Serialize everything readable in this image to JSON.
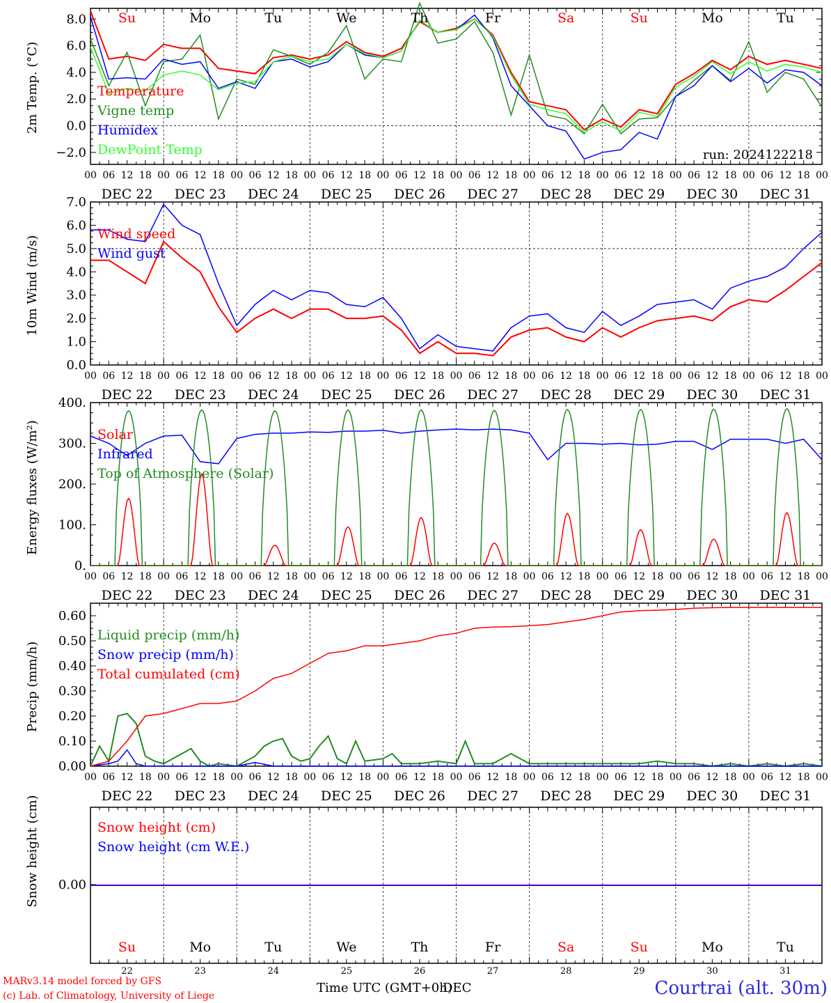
{
  "colors": {
    "red": "#ff0000",
    "green": "#228b22",
    "blue": "#0000ff",
    "lightgreen": "#33ff33",
    "black": "#000000",
    "title_blue": "#2b2be0"
  },
  "days": {
    "names": [
      "Su",
      "Mo",
      "Tu",
      "We",
      "Th",
      "Fr",
      "Sa",
      "Su",
      "Mo",
      "Tu"
    ],
    "colors": [
      "red",
      "black",
      "black",
      "black",
      "black",
      "black",
      "red",
      "red",
      "black",
      "black"
    ],
    "dates": [
      "DEC 22",
      "DEC 23",
      "DEC 24",
      "DEC 25",
      "DEC 26",
      "DEC 27",
      "DEC 28",
      "DEC 29",
      "DEC 30",
      "DEC 31"
    ],
    "numbers": [
      "22",
      "23",
      "24",
      "25",
      "26",
      "27",
      "28",
      "29",
      "30",
      "31"
    ],
    "hour_labels": [
      "00",
      "06",
      "12",
      "18"
    ],
    "final_hour": "00"
  },
  "footer": {
    "credit1": "MARv3.14 model forced by GFS",
    "credit2": "(c) Lab. of Climatology, University of Liege",
    "time_label": "Time UTC (GMT+0h)",
    "time_label_overlap": "DEC",
    "location": "Courtrai (alt. 30m)"
  },
  "chart_data": [
    {
      "type": "line",
      "ylabel": "2m Temp. (°C)",
      "ylim": [
        -2.9,
        8.8
      ],
      "ytick_values": [
        -2,
        0,
        2,
        4,
        6,
        8
      ],
      "ytick_labels": [
        "−2.0",
        "0.0",
        "2.0",
        "4.0",
        "6.0",
        "8.0"
      ],
      "reference_line": 0,
      "annotation": "run: 2024122218",
      "x_hours": [
        0,
        6,
        12,
        18,
        24,
        30,
        36,
        42,
        48,
        54,
        60,
        66,
        72,
        78,
        84,
        90,
        96,
        102,
        108,
        114,
        120,
        126,
        132,
        138,
        144,
        150,
        156,
        162,
        168,
        174,
        180,
        186,
        192,
        198,
        204,
        210,
        216,
        222,
        228,
        234,
        240
      ],
      "series": [
        {
          "name": "Temperature",
          "color": "red",
          "values": [
            8.6,
            5.0,
            5.2,
            4.9,
            6.1,
            5.8,
            5.8,
            4.3,
            4.1,
            3.9,
            5.1,
            5.3,
            5.0,
            5.3,
            6.3,
            5.5,
            5.2,
            5.8,
            7.8,
            7.0,
            7.3,
            8.0,
            6.8,
            4.0,
            1.8,
            1.5,
            1.2,
            -0.3,
            0.5,
            -0.1,
            1.2,
            0.9,
            3.1,
            3.9,
            4.9,
            4.2,
            5.2,
            4.6,
            4.9,
            4.6,
            4.3
          ]
        },
        {
          "name": "Vigne temp",
          "color": "green",
          "values": [
            6.5,
            3.0,
            5.5,
            1.5,
            4.8,
            5.0,
            6.8,
            0.5,
            3.5,
            3.1,
            5.7,
            5.2,
            4.6,
            5.5,
            7.5,
            3.5,
            5.0,
            4.8,
            9.2,
            6.2,
            6.5,
            7.8,
            5.5,
            0.8,
            5.3,
            0.8,
            0.5,
            -0.6,
            1.6,
            -0.6,
            0.5,
            0.6,
            2.2,
            3.4,
            4.5,
            3.4,
            6.3,
            2.5,
            4.0,
            3.5,
            1.4
          ]
        },
        {
          "name": "Humidex",
          "color": "blue",
          "values": [
            8.2,
            3.5,
            3.6,
            3.5,
            5.0,
            4.6,
            4.8,
            2.8,
            3.3,
            2.8,
            4.8,
            5.0,
            4.4,
            4.8,
            6.1,
            5.3,
            5.1,
            5.6,
            7.9,
            7.0,
            7.2,
            8.3,
            6.6,
            3.0,
            1.5,
            0.0,
            -0.4,
            -2.5,
            -2.0,
            -1.8,
            -0.5,
            -1.0,
            2.2,
            3.0,
            4.5,
            3.3,
            4.3,
            3.2,
            4.2,
            4.0,
            3.0
          ]
        },
        {
          "name": "DewPoint Temp",
          "color": "lightgreen",
          "values": [
            5.9,
            2.4,
            2.8,
            2.6,
            3.8,
            4.1,
            3.8,
            2.7,
            3.2,
            3.3,
            4.8,
            5.2,
            4.8,
            5.0,
            6.1,
            5.4,
            5.1,
            5.6,
            7.9,
            7.0,
            7.2,
            8.0,
            6.7,
            3.8,
            1.6,
            1.2,
            0.9,
            -0.5,
            0.3,
            -0.4,
            1.0,
            0.7,
            2.9,
            3.7,
            4.8,
            3.9,
            4.8,
            4.1,
            4.6,
            4.4,
            4.0
          ]
        }
      ]
    },
    {
      "type": "line",
      "ylabel": "10m Wind (m/s)",
      "ylim": [
        0,
        7
      ],
      "ytick_values": [
        0,
        1,
        2,
        3,
        4,
        5,
        6,
        7
      ],
      "ytick_labels": [
        "0.0",
        "1.0",
        "2.0",
        "3.0",
        "4.0",
        "5.0",
        "6.0",
        "7.0"
      ],
      "reference_line": 5,
      "x_hours": [
        0,
        6,
        12,
        18,
        24,
        30,
        36,
        42,
        48,
        54,
        60,
        66,
        72,
        78,
        84,
        90,
        96,
        102,
        108,
        114,
        120,
        126,
        132,
        138,
        144,
        150,
        156,
        162,
        168,
        174,
        180,
        186,
        192,
        198,
        204,
        210,
        216,
        222,
        228,
        234,
        240
      ],
      "series": [
        {
          "name": "Wind speed",
          "color": "red",
          "values": [
            4.5,
            4.5,
            4.0,
            3.5,
            5.3,
            4.6,
            4.0,
            2.5,
            1.4,
            2.0,
            2.4,
            2.0,
            2.4,
            2.4,
            2.0,
            2.0,
            2.1,
            1.5,
            0.5,
            1.0,
            0.5,
            0.5,
            0.4,
            1.2,
            1.5,
            1.6,
            1.2,
            1.0,
            1.6,
            1.2,
            1.6,
            1.9,
            2.0,
            2.1,
            1.9,
            2.5,
            2.8,
            2.7,
            3.2,
            3.8,
            4.4
          ]
        },
        {
          "name": "Wind gust",
          "color": "blue",
          "values": [
            5.8,
            5.8,
            5.4,
            5.3,
            6.9,
            6.0,
            5.6,
            3.5,
            1.7,
            2.6,
            3.2,
            2.8,
            3.2,
            3.1,
            2.6,
            2.5,
            2.9,
            2.0,
            0.7,
            1.3,
            0.8,
            0.7,
            0.6,
            1.6,
            2.1,
            2.2,
            1.6,
            1.4,
            2.3,
            1.7,
            2.1,
            2.6,
            2.7,
            2.8,
            2.4,
            3.3,
            3.6,
            3.8,
            4.2,
            5.0,
            5.7
          ]
        }
      ]
    },
    {
      "type": "line",
      "ylabel": "Energy fluxes (W/m²)",
      "ylim": [
        0,
        400
      ],
      "ytick_values": [
        0,
        100,
        200,
        300,
        400
      ],
      "ytick_labels": [
        "0.",
        "100.",
        "200.",
        "300.",
        "400."
      ],
      "series": [
        {
          "name": "Solar",
          "color": "red",
          "daily_peak_values": [
            165,
            225,
            50,
            95,
            118,
            55,
            128,
            88,
            65,
            130
          ]
        },
        {
          "name": "Infrared",
          "color": "blue",
          "x_hours": [
            0,
            6,
            12,
            18,
            24,
            30,
            36,
            42,
            48,
            54,
            60,
            66,
            72,
            78,
            84,
            90,
            96,
            102,
            108,
            114,
            120,
            126,
            132,
            138,
            144,
            150,
            156,
            162,
            168,
            174,
            180,
            186,
            192,
            198,
            204,
            210,
            216,
            222,
            228,
            234,
            240
          ],
          "values": [
            318,
            300,
            270,
            300,
            318,
            320,
            255,
            250,
            312,
            322,
            325,
            325,
            328,
            327,
            330,
            330,
            332,
            325,
            330,
            333,
            335,
            333,
            335,
            333,
            325,
            260,
            300,
            300,
            298,
            300,
            296,
            298,
            305,
            305,
            285,
            310,
            310,
            310,
            300,
            310,
            260
          ]
        },
        {
          "name": "Top of Atmosphere (Solar)",
          "color": "green",
          "daily_peak_values": [
            380,
            382,
            380,
            382,
            382,
            381,
            383,
            383,
            384,
            385
          ]
        }
      ]
    },
    {
      "type": "line",
      "ylabel": "Precip (mm/h)",
      "ylim": [
        0,
        0.65
      ],
      "ytick_values": [
        0,
        0.1,
        0.2,
        0.3,
        0.4,
        0.5,
        0.6
      ],
      "ytick_labels": [
        "0.00",
        "0.10",
        "0.20",
        "0.30",
        "0.40",
        "0.50",
        "0.60"
      ],
      "series": [
        {
          "name": "Liquid precip (mm/h)",
          "color": "green",
          "x_hours": [
            0,
            3,
            6,
            9,
            12,
            15,
            18,
            21,
            24,
            30,
            33,
            36,
            39,
            42,
            48,
            54,
            57,
            60,
            63,
            66,
            69,
            72,
            75,
            78,
            81,
            84,
            87,
            90,
            96,
            99,
            102,
            108,
            114,
            120,
            123,
            126,
            132,
            138,
            144,
            150,
            156,
            162,
            168,
            174,
            180,
            186,
            192,
            198,
            204,
            210,
            216,
            222,
            228,
            234,
            240
          ],
          "values": [
            0,
            0.08,
            0.02,
            0.2,
            0.21,
            0.17,
            0.04,
            0.02,
            0.01,
            0.05,
            0.07,
            0.02,
            0.0,
            0.01,
            0.0,
            0.04,
            0.08,
            0.1,
            0.11,
            0.04,
            0.02,
            0.03,
            0.08,
            0.12,
            0.03,
            0.01,
            0.1,
            0.02,
            0.03,
            0.05,
            0.01,
            0.01,
            0.02,
            0.01,
            0.1,
            0.01,
            0.01,
            0.05,
            0.01,
            0.01,
            0.01,
            0.01,
            0.01,
            0.01,
            0.01,
            0.02,
            0.01,
            0.01,
            0.0,
            0.01,
            0.0,
            0.01,
            0.0,
            0.01,
            0.0
          ]
        },
        {
          "name": "Snow precip (mm/h)",
          "color": "blue",
          "x_hours": [
            0,
            6,
            9,
            12,
            15,
            18,
            24,
            48,
            54,
            60,
            240
          ],
          "values": [
            0,
            0.01,
            0.02,
            0.065,
            0.01,
            0.0,
            0.0,
            0.0,
            0.015,
            0.0,
            0.0
          ]
        },
        {
          "name": "Total cumulated (cm)",
          "color": "red",
          "x_hours": [
            0,
            6,
            12,
            18,
            24,
            30,
            36,
            42,
            48,
            54,
            60,
            66,
            72,
            78,
            84,
            90,
            96,
            102,
            108,
            114,
            120,
            126,
            132,
            138,
            144,
            150,
            156,
            162,
            168,
            174,
            180,
            186,
            192,
            198,
            204,
            210,
            216,
            222,
            228,
            234,
            240
          ],
          "values": [
            0,
            0.02,
            0.1,
            0.2,
            0.21,
            0.23,
            0.25,
            0.25,
            0.26,
            0.3,
            0.35,
            0.37,
            0.41,
            0.45,
            0.46,
            0.48,
            0.48,
            0.49,
            0.5,
            0.52,
            0.53,
            0.55,
            0.555,
            0.556,
            0.56,
            0.565,
            0.575,
            0.585,
            0.6,
            0.615,
            0.62,
            0.622,
            0.625,
            0.63,
            0.632,
            0.633,
            0.633,
            0.633,
            0.633,
            0.633,
            0.633
          ]
        }
      ]
    },
    {
      "type": "line",
      "ylabel": "Snow height (cm)",
      "ytick_values": [
        0
      ],
      "ytick_labels": [
        "0.00"
      ],
      "series": [
        {
          "name": "Snow height (cm)",
          "color": "red",
          "x_hours": [
            0,
            240
          ],
          "values": [
            0,
            0
          ]
        },
        {
          "name": "Snow height (cm W.E.)",
          "color": "blue",
          "x_hours": [
            0,
            240
          ],
          "values": [
            0,
            0
          ]
        }
      ]
    }
  ]
}
